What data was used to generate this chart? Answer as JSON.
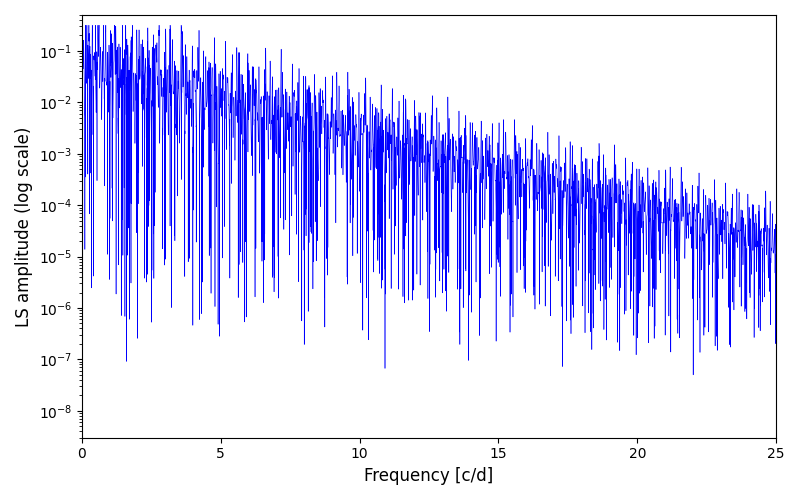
{
  "title": "",
  "xlabel": "Frequency [c/d]",
  "ylabel": "LS amplitude (log scale)",
  "line_color": "#0000ff",
  "xlim": [
    0,
    25
  ],
  "ylim": [
    3e-09,
    0.5
  ],
  "yscale": "log",
  "figsize": [
    8.0,
    5.0
  ],
  "dpi": 100,
  "freq_max": 25.0,
  "n_points": 15000,
  "seed": 12345
}
